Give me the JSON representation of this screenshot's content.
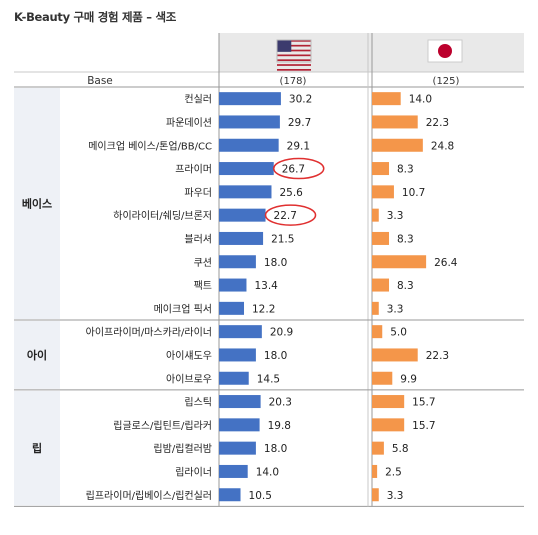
{
  "title": "K-Beauty 구매 경험 제품 – 색조",
  "base_label": "Base",
  "colors": {
    "us_bar": "#4472c4",
    "jp_bar": "#f4964a",
    "header_bg": "#e9e9e9",
    "group_bg": "#eef1f6",
    "highlight": "#e03030",
    "divider": "#c8c8c8"
  },
  "chart_data": {
    "type": "bar",
    "title": "K-Beauty 구매 경험 제품 – 색조",
    "orientation": "horizontal",
    "series": [
      {
        "name": "",
        "flag": "us-flag-icon",
        "base": "(178)",
        "values": [
          30.2,
          29.7,
          29.1,
          26.7,
          25.6,
          22.7,
          21.5,
          18.0,
          13.4,
          12.2,
          20.9,
          18.0,
          14.5,
          20.3,
          19.8,
          18.0,
          14.0,
          10.5
        ]
      },
      {
        "name": "",
        "flag": "jp-flag-icon",
        "base": "(125)",
        "values": [
          14.0,
          22.3,
          24.8,
          8.3,
          10.7,
          3.3,
          8.3,
          26.4,
          8.3,
          3.3,
          5.0,
          22.3,
          9.9,
          15.7,
          15.7,
          5.8,
          2.5,
          3.3
        ]
      }
    ],
    "categories": [
      "컨실러",
      "파운데이션",
      "메이크업 베이스/톤업/BB/CC",
      "프라이머",
      "파우더",
      "하이라이터/쉐딩/브론저",
      "블러셔",
      "쿠션",
      "팩트",
      "메이크업 픽서",
      "아이프라이머/마스카라/라이너",
      "아이섀도우",
      "아이브로우",
      "립스틱",
      "립글로스/립틴트/립라커",
      "립밤/립컬러밤",
      "립라이너",
      "립프라이머/립베이스/립컨실러"
    ],
    "groups": [
      {
        "name": "베이스",
        "count": 10
      },
      {
        "name": "아이",
        "count": 3
      },
      {
        "name": "립",
        "count": 5
      }
    ],
    "value_labels": {
      "us": [
        "30.2",
        "29.7",
        "29.1",
        "26.7",
        "25.6",
        "22.7",
        "21.5",
        "18.0",
        "13.4",
        "12.2",
        "20.9",
        "18.0",
        "14.5",
        "20.3",
        "19.8",
        "18.0",
        "14.0",
        "10.5"
      ],
      "jp": [
        "14.0",
        "22.3",
        "24.8",
        "8.3",
        "10.7",
        "3.3",
        "8.3",
        "26.4",
        "8.3",
        "3.3",
        "5.0",
        "22.3",
        "9.9",
        "15.7",
        "15.7",
        "5.8",
        "2.5",
        "3.3"
      ]
    },
    "highlighted": [
      3,
      5
    ],
    "legend": "none",
    "grid": false
  }
}
